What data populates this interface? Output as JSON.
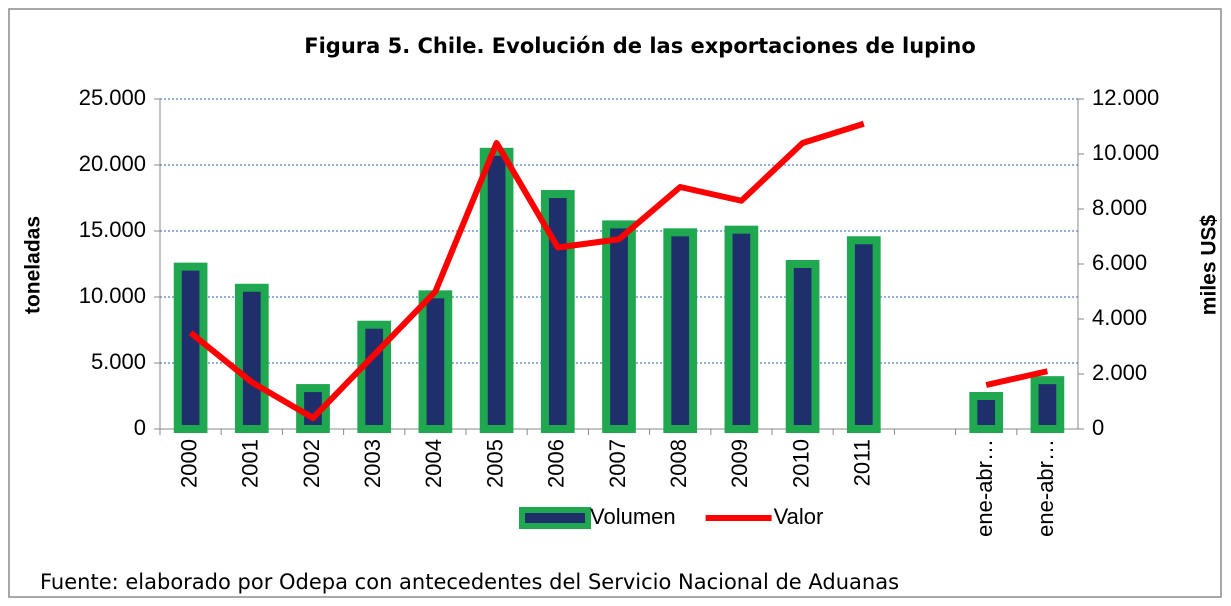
{
  "chart_data": {
    "type": "bar-line",
    "title": "Figura 5.  Chile. Evolución de las exportaciones de lupino",
    "ylabel": "toneladas",
    "y2label": "miles US$",
    "categories": [
      "2000",
      "2001",
      "2002",
      "2003",
      "2004",
      "2005",
      "2006",
      "2007",
      "2008",
      "2009",
      "2010",
      "2011",
      null,
      "ene-abr…",
      "ene-abr…"
    ],
    "series": [
      {
        "name": "Volumen",
        "color": "#1f2f6b",
        "border_color": "#1fa84f",
        "kind": "bar",
        "values": [
          12300,
          10700,
          3100,
          7900,
          10200,
          21000,
          17800,
          15500,
          14900,
          15100,
          12500,
          14300,
          null,
          2500,
          3700
        ]
      },
      {
        "name": "Valor",
        "color": "#ff0000",
        "kind": "line",
        "axis": "y2",
        "values": [
          3500,
          1700,
          400,
          2700,
          5000,
          10400,
          6600,
          6900,
          8800,
          8300,
          10400,
          11100,
          null,
          1600,
          2100
        ]
      }
    ],
    "ylim": [
      0,
      25000
    ],
    "yticks": [
      0,
      {
        "value": 5000,
        "label": "5.000"
      },
      {
        "value": 10000,
        "label": "10.000"
      },
      {
        "value": 15000,
        "label": "15.000"
      },
      {
        "value": 20000,
        "label": "20.000"
      },
      {
        "value": 25000,
        "label": "25.000"
      }
    ],
    "y2lim": [
      0,
      12000
    ],
    "y2ticks": [
      0,
      {
        "value": 2000,
        "label": "2.000"
      },
      {
        "value": 4000,
        "label": "4.000"
      },
      {
        "value": 6000,
        "label": "6.000"
      },
      {
        "value": 8000,
        "label": "8.000"
      },
      {
        "value": 10000,
        "label": "10.000"
      },
      {
        "value": 12000,
        "label": "12.000"
      }
    ],
    "grid": true,
    "legend": "bottom",
    "source": "Fuente: elaborado por Odepa  con antecedentes del Servicio Nacional de Aduanas"
  }
}
